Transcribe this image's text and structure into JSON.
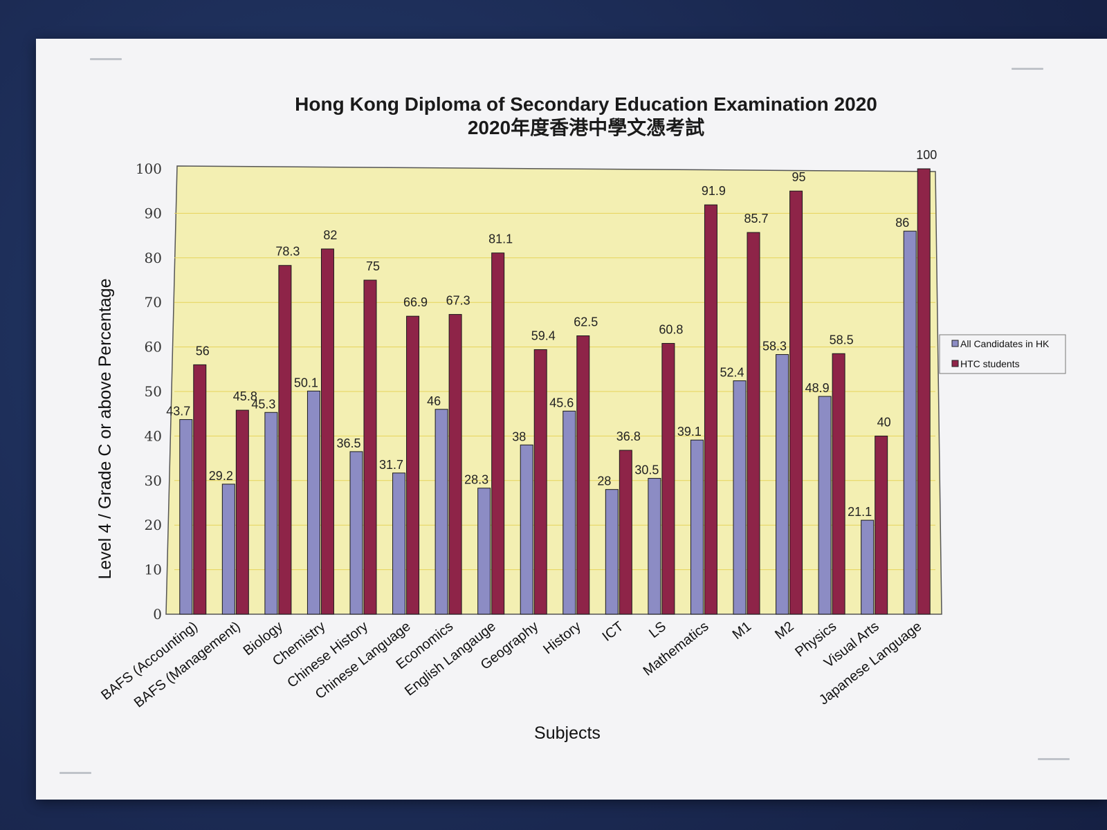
{
  "chart_data": {
    "type": "bar",
    "title": "Hong Kong Diploma of Secondary Education Examination 2020",
    "subtitle": "2020年度香港中學文憑考試",
    "xlabel": "Subjects",
    "ylabel": "Level 4 / Grade C or above Percentage",
    "ylim": [
      0,
      100
    ],
    "yticks": [
      "0",
      "10",
      "20",
      "30",
      "40",
      "50",
      "60",
      "70",
      "80",
      "90",
      "100"
    ],
    "grid": true,
    "legend_position": "right",
    "categories": [
      "BAFS (Accounting)",
      "BAFS (Management)",
      "Biology",
      "Chemistry",
      "Chinese History",
      "Chinese Language",
      "Economics",
      "English Langauge",
      "Geography",
      "History",
      "ICT",
      "LS",
      "Mathematics",
      "M1",
      "M2",
      "Physics",
      "Visual Arts",
      "Japanese Language"
    ],
    "series": [
      {
        "name": "All Candidates in HK",
        "color": "#8c8cc4",
        "values": [
          43.7,
          29.2,
          45.3,
          50.1,
          36.5,
          31.7,
          46,
          28.3,
          38,
          45.6,
          28,
          30.5,
          39.1,
          52.4,
          58.3,
          48.9,
          21.1,
          86
        ],
        "labels": [
          "43.7",
          "29.2",
          "45.3",
          "50.1",
          "36.5",
          "31.7",
          "46",
          "28.3",
          "38",
          "45.6",
          "28",
          "30.5",
          "39.1",
          "52.4",
          "58.3",
          "48.9",
          "21.1",
          "86"
        ]
      },
      {
        "name": "HTC students",
        "color": "#8e2448",
        "values": [
          56,
          45.8,
          78.3,
          82,
          75,
          66.9,
          67.3,
          81.1,
          59.4,
          62.5,
          36.8,
          60.8,
          91.9,
          85.7,
          95,
          58.5,
          40,
          100
        ],
        "labels": [
          "56",
          "45.8",
          "78.3",
          "82",
          "75",
          "66.9",
          "67.3",
          "81.1",
          "59.4",
          "62.5",
          "36.8",
          "60.8",
          "91.9",
          "85.7",
          "95",
          "58.5",
          "40",
          "100"
        ]
      }
    ]
  }
}
